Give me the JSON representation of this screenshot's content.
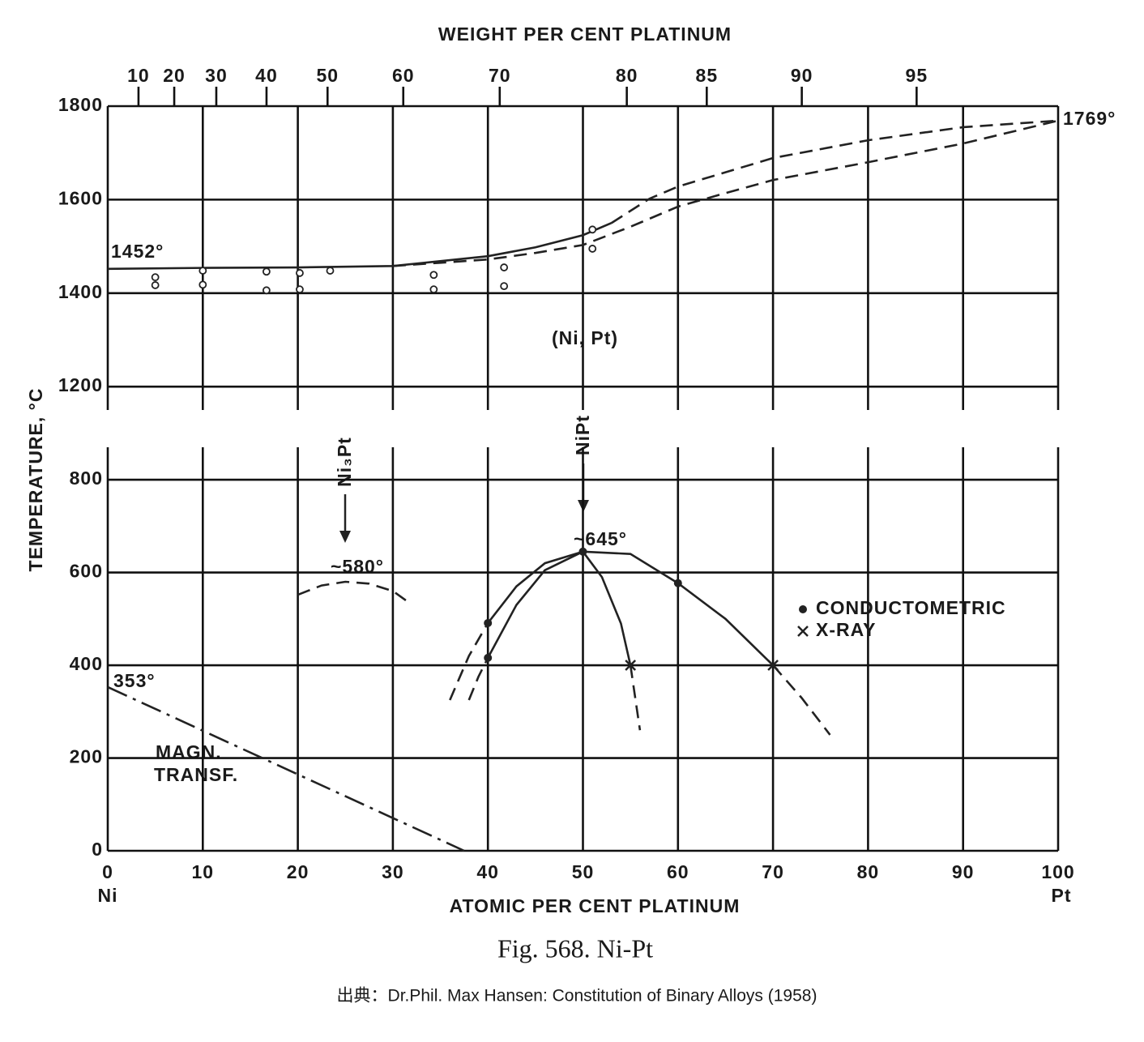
{
  "chart_data": {
    "type": "phase-diagram",
    "title": "Fig. 568. Ni-Pt",
    "source": "出典：Dr.Phil. Max Hansen: Constitution of Binary Alloys (1958)",
    "xlabel": "ATOMIC PER CENT PLATINUM",
    "x2label": "WEIGHT PER CENT PLATINUM",
    "ylabel": "TEMPERATURE, °C",
    "xlim": [
      0,
      100
    ],
    "xticks": [
      0,
      10,
      20,
      30,
      40,
      50,
      60,
      70,
      80,
      90,
      100
    ],
    "x_end_labels": [
      "Ni",
      "Pt"
    ],
    "x2ticks": [
      10,
      20,
      30,
      40,
      50,
      60,
      70,
      80,
      85,
      90,
      95
    ],
    "x2_scale": "weight-to-atomic",
    "upper": {
      "ylim": [
        1150,
        1800
      ],
      "yticks": [
        1200,
        1400,
        1600,
        1800
      ]
    },
    "lower": {
      "ylim": [
        0,
        870
      ],
      "yticks": [
        0,
        200,
        400,
        600,
        800
      ]
    },
    "grid": true,
    "annotations": {
      "liquidus_ni": "1452°",
      "liquidus_pt": "1769°",
      "phase": "(Ni, Pt)",
      "ni3pt": "Ni₃Pt",
      "nipt": "NiPt",
      "ni3pt_max": "~580°",
      "nipt_max": "~645°",
      "curie": "353°",
      "magn_1": "MAGN.",
      "magn_2": "TRANSF."
    },
    "curves": [
      {
        "panel": "upper",
        "style": "solid",
        "x": [
          0,
          10,
          20,
          30,
          40,
          45,
          50,
          53
        ],
        "y": [
          1452,
          1454,
          1455,
          1458,
          1479,
          1498,
          1524,
          1550
        ]
      },
      {
        "panel": "upper",
        "style": "dashed",
        "x": [
          53,
          57,
          60,
          70,
          80,
          90,
          100
        ],
        "y": [
          1550,
          1602,
          1628,
          1689,
          1727,
          1755,
          1769
        ]
      },
      {
        "panel": "upper",
        "style": "dashed",
        "x": [
          30,
          35,
          40,
          45,
          50,
          55,
          60,
          65,
          70,
          80,
          90,
          100
        ],
        "y": [
          1458,
          1465,
          1472,
          1486,
          1503,
          1542,
          1585,
          1614,
          1642,
          1680,
          1720,
          1769
        ]
      },
      {
        "panel": "lower",
        "style": "dashed",
        "x": [
          20,
          22.5,
          25,
          27.5,
          30,
          31.5
        ],
        "y": [
          552,
          572,
          580,
          576,
          560,
          538
        ]
      },
      {
        "panel": "lower",
        "style": "dashed",
        "x": [
          36,
          38,
          40
        ],
        "y": [
          325,
          420,
          491
        ]
      },
      {
        "panel": "lower",
        "style": "solid",
        "x": [
          40,
          43,
          46,
          50,
          55,
          60,
          65,
          70
        ],
        "y": [
          491,
          570,
          620,
          645,
          640,
          577,
          500,
          400
        ]
      },
      {
        "panel": "lower",
        "style": "dashed",
        "x": [
          70,
          73,
          76
        ],
        "y": [
          400,
          330,
          250
        ]
      },
      {
        "panel": "lower",
        "style": "dashed",
        "x": [
          38,
          39,
          40
        ],
        "y": [
          325,
          375,
          416
        ]
      },
      {
        "panel": "lower",
        "style": "solid",
        "x": [
          40,
          43,
          46,
          50,
          52,
          54,
          55
        ],
        "y": [
          416,
          530,
          605,
          645,
          590,
          490,
          400
        ]
      },
      {
        "panel": "lower",
        "style": "dashed",
        "x": [
          55,
          55.5,
          56
        ],
        "y": [
          400,
          330,
          260
        ]
      },
      {
        "panel": "lower",
        "style": "dashdot",
        "x": [
          0,
          37.5
        ],
        "y": [
          353,
          0
        ]
      }
    ],
    "observations": {
      "panel": "upper",
      "marker": "circle",
      "x": [
        5,
        5,
        10,
        10,
        16.7,
        16.7,
        20.2,
        20.2,
        23.4,
        34.3,
        34.3,
        41.7,
        41.7,
        51,
        51
      ],
      "values": [
        1434,
        1417,
        1448,
        1418,
        1446,
        1406,
        1443,
        1408,
        1448,
        1439,
        1408,
        1455,
        1415,
        1536,
        1495
      ]
    },
    "series": [
      {
        "name": "CONDUCTOMETRIC",
        "marker": "dot",
        "panel": "lower",
        "x": [
          40,
          40,
          50,
          60
        ],
        "values": [
          491,
          416,
          645,
          577
        ]
      },
      {
        "name": "X-RAY",
        "marker": "cross",
        "panel": "lower",
        "x": [
          55,
          70
        ],
        "values": [
          400,
          400
        ]
      }
    ]
  }
}
